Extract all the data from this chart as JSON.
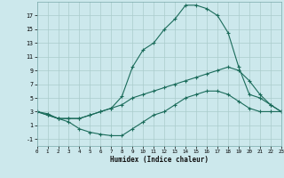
{
  "bg_color": "#cce8ec",
  "grid_color": "#b0d4d8",
  "line_color": "#1a6b5a",
  "marker_color": "#1a6b5a",
  "xlabel": "Humidex (Indice chaleur)",
  "xlim": [
    0,
    23
  ],
  "ylim": [
    -2,
    19
  ],
  "xticks": [
    0,
    1,
    2,
    3,
    4,
    5,
    6,
    7,
    8,
    9,
    10,
    11,
    12,
    13,
    14,
    15,
    16,
    17,
    18,
    19,
    20,
    21,
    22,
    23
  ],
  "yticks": [
    -1,
    1,
    3,
    5,
    7,
    9,
    11,
    13,
    15,
    17
  ],
  "curve_top_x": [
    0,
    1,
    2,
    3,
    4,
    5,
    6,
    7,
    8,
    9,
    10,
    11,
    12,
    13,
    14,
    15,
    16,
    17,
    18,
    19,
    20,
    21,
    22,
    23
  ],
  "curve_top_y": [
    3,
    2.7,
    2,
    2,
    2,
    2.5,
    3,
    3.5,
    5.2,
    9.5,
    12,
    13,
    15,
    16.5,
    18.5,
    18.5,
    18,
    17,
    14.5,
    9.5,
    5.5,
    5,
    4,
    3
  ],
  "curve_mid_x": [
    0,
    1,
    2,
    3,
    4,
    5,
    6,
    7,
    8,
    9,
    10,
    11,
    12,
    13,
    14,
    15,
    16,
    17,
    18,
    19,
    20,
    21,
    22,
    23
  ],
  "curve_mid_y": [
    3,
    2.5,
    2,
    2,
    2,
    2.5,
    3,
    3.5,
    4,
    5,
    5.5,
    6,
    6.5,
    7,
    7.5,
    8,
    8.5,
    9,
    9.5,
    9,
    7.5,
    5.5,
    4,
    3
  ],
  "curve_bot_x": [
    0,
    1,
    2,
    3,
    4,
    5,
    6,
    7,
    8,
    9,
    10,
    11,
    12,
    13,
    14,
    15,
    16,
    17,
    18,
    19,
    20,
    21,
    22,
    23
  ],
  "curve_bot_y": [
    3,
    2.5,
    2,
    1.5,
    0.5,
    0,
    -0.3,
    -0.5,
    -0.5,
    0.5,
    1.5,
    2.5,
    3,
    4,
    5,
    5.5,
    6,
    6,
    5.5,
    4.5,
    3.5,
    3,
    3,
    3
  ]
}
